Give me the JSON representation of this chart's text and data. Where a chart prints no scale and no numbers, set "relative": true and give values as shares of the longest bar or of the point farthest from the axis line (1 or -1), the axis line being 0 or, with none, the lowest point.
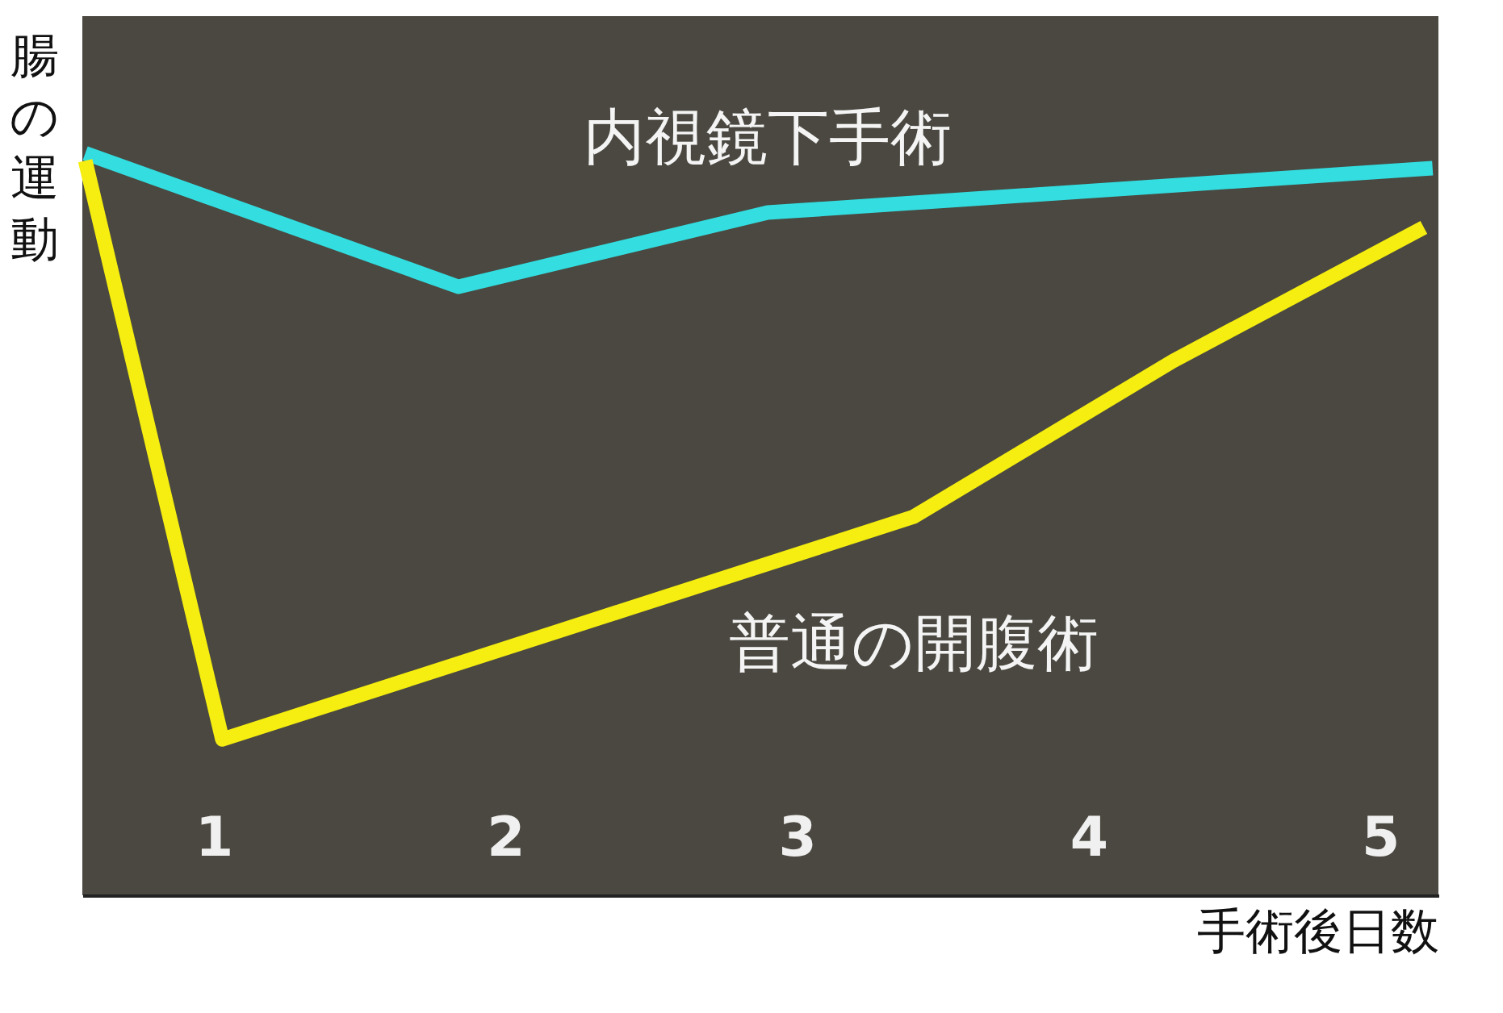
{
  "chart_data": {
    "type": "line",
    "relative": true,
    "xlabel": "手術後日数",
    "ylabel": "腸の運動",
    "xlim": [
      0.55,
      5.2
    ],
    "xticks": [
      1,
      2,
      3,
      4,
      5
    ],
    "grid": false,
    "legend": false,
    "marker": "none",
    "line_style": "solid",
    "series": [
      {
        "name": "内視鏡下手術",
        "color": "#33dde0",
        "x": [
          0.56,
          1.84,
          2.9,
          5.18
        ],
        "values": [
          1.0,
          0.82,
          0.92,
          0.98
        ]
      },
      {
        "name": "普通の開腹術",
        "color": "#f5ee10",
        "x": [
          0.56,
          1.03,
          3.4,
          4.29,
          5.15
        ],
        "values": [
          0.99,
          0.21,
          0.51,
          0.72,
          0.9
        ]
      }
    ]
  }
}
